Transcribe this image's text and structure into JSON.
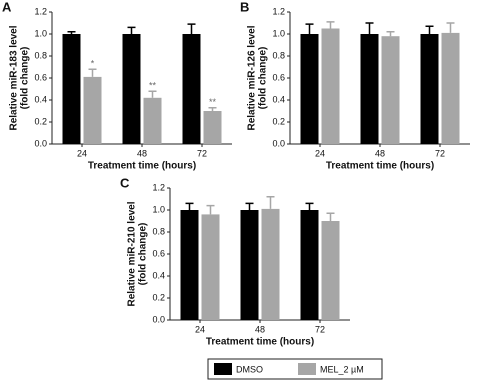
{
  "chart_data": [
    {
      "type": "bar",
      "panel": "A",
      "ylabel": [
        "Relative miR-183 level",
        "(fold change)"
      ],
      "xlabel": "Treatment time (hours)",
      "categories": [
        "24",
        "48",
        "72"
      ],
      "ylim": [
        0,
        1.2
      ],
      "yticks": [
        {
          "value": 0,
          "label": "0.0"
        },
        {
          "value": 0.2,
          "label": "0.2"
        },
        {
          "value": 0.4,
          "label": "0.4"
        },
        {
          "value": 0.6,
          "label": "0.6"
        },
        {
          "value": 0.8,
          "label": "0.8"
        },
        {
          "value": 1.0,
          "label": "1.0"
        },
        {
          "value": 1.2,
          "label": "1.2"
        }
      ],
      "series": [
        {
          "values": [
            1.0,
            1.0,
            1.0
          ],
          "errors": [
            0.02,
            0.06,
            0.09
          ]
        },
        {
          "values": [
            0.61,
            0.42,
            0.3
          ],
          "errors": [
            0.07,
            0.06,
            0.03
          ],
          "markers": [
            "*",
            "**",
            "**"
          ]
        }
      ]
    },
    {
      "type": "bar",
      "panel": "B",
      "ylabel": [
        "Relative miR-126 level",
        "(fold change)"
      ],
      "xlabel": "Treatment time (hours)",
      "categories": [
        "24",
        "48",
        "72"
      ],
      "ylim": [
        0,
        1.2
      ],
      "yticks": [
        {
          "value": 0,
          "label": "0.0"
        },
        {
          "value": 0.2,
          "label": "0.2"
        },
        {
          "value": 0.4,
          "label": "0.4"
        },
        {
          "value": 0.6,
          "label": "0.6"
        },
        {
          "value": 0.8,
          "label": "0.8"
        },
        {
          "value": 1.0,
          "label": "1.0"
        },
        {
          "value": 1.2,
          "label": "1.2"
        }
      ],
      "series": [
        {
          "values": [
            1.0,
            1.0,
            1.0
          ],
          "errors": [
            0.09,
            0.1,
            0.07
          ]
        },
        {
          "values": [
            1.05,
            0.98,
            1.01
          ],
          "errors": [
            0.06,
            0.04,
            0.09
          ]
        }
      ]
    },
    {
      "type": "bar",
      "panel": "C",
      "ylabel": [
        "Relative miR-210 level",
        "(fold change)"
      ],
      "xlabel": "Treatment time (hours)",
      "categories": [
        "24",
        "48",
        "72"
      ],
      "ylim": [
        0,
        1.2
      ],
      "yticks": [
        {
          "value": 0,
          "label": "0.0"
        },
        {
          "value": 0.2,
          "label": "0.2"
        },
        {
          "value": 0.4,
          "label": "0.4"
        },
        {
          "value": 0.6,
          "label": "0.6"
        },
        {
          "value": 0.8,
          "label": "0.8"
        },
        {
          "value": 1.0,
          "label": "1.0"
        },
        {
          "value": 1.2,
          "label": "1.2"
        }
      ],
      "series": [
        {
          "values": [
            1.0,
            1.0,
            1.0
          ],
          "errors": [
            0.06,
            0.06,
            0.06
          ]
        },
        {
          "values": [
            0.96,
            1.01,
            0.9
          ],
          "errors": [
            0.08,
            0.11,
            0.07
          ]
        }
      ]
    }
  ],
  "legend": [
    {
      "name": "DMSO",
      "color": "#000000"
    },
    {
      "name": "MEL_2 µM",
      "color": "#a6a6a6"
    }
  ]
}
